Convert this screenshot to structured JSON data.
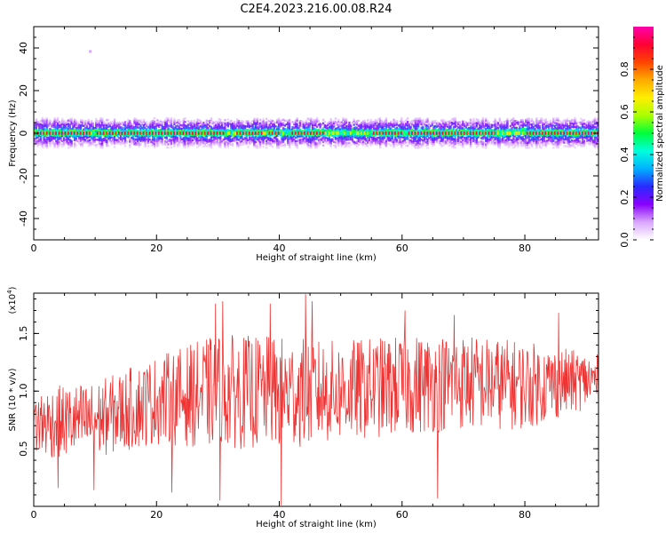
{
  "title": "C2E4.2023.216.00.08.R24",
  "chart_data": [
    {
      "type": "heatmap",
      "xlabel": "Height of straight line (km)",
      "ylabel": "Frequency (Hz)",
      "xlim": [
        0,
        92
      ],
      "ylim": [
        -50,
        50
      ],
      "xticks": [
        0,
        20,
        40,
        60,
        80
      ],
      "yticks": [
        -40,
        -20,
        0,
        20,
        40
      ],
      "band": {
        "center_hz": 0,
        "core_halfwidth_hz": 1.5,
        "envelope_halfwidth_hz": 6,
        "peak_amplitude_ranges_km": [
          [
            0,
            9
          ],
          [
            10,
            31
          ],
          [
            33,
            37
          ],
          [
            38,
            40
          ],
          [
            42,
            47
          ],
          [
            55,
            60
          ],
          [
            61,
            75
          ],
          [
            80,
            92
          ]
        ],
        "elevated_low_freq_km": [
          77,
          80
        ],
        "isolated_point": {
          "x": 9,
          "y": 39
        }
      },
      "colorbar": {
        "label": "Normalized spectral amplitude",
        "range": [
          0,
          1
        ],
        "ticks": [
          "0.0",
          "0.2",
          "0.4",
          "0.6",
          "0.8"
        ],
        "colors": [
          "#ffffff",
          "#d9a6ff",
          "#8800ff",
          "#2a2aff",
          "#00b0ff",
          "#00ffdd",
          "#00ff3c",
          "#aaff00",
          "#ffee00",
          "#ffaa00",
          "#ff4400",
          "#ff0033",
          "#ff00aa"
        ]
      }
    },
    {
      "type": "line",
      "xlabel": "Height of straight line (km)",
      "ylabel": "SNR (10 * v/v)",
      "multiplier": "(x10",
      "multiplier_exp": "4",
      "multiplier_close": ")",
      "xlim": [
        0,
        92
      ],
      "ylim": [
        0,
        1.85
      ],
      "xticks": [
        0,
        20,
        40,
        60,
        80
      ],
      "yticks": [
        "0.5",
        "1.0",
        "1.5"
      ],
      "color": "#ee3333",
      "trend": {
        "x": [
          0,
          10,
          20,
          30,
          40,
          50,
          60,
          70,
          80,
          92
        ],
        "mean": [
          0.72,
          0.75,
          0.92,
          1.0,
          0.98,
          1.0,
          1.05,
          1.08,
          1.05,
          1.1
        ],
        "spread": [
          0.28,
          0.3,
          0.35,
          0.45,
          0.45,
          0.4,
          0.4,
          0.38,
          0.35,
          0.2
        ]
      },
      "peaks": [
        {
          "x": 44.3,
          "y": 1.84
        },
        {
          "x": 45.4,
          "y": 1.78
        },
        {
          "x": 30.8,
          "y": 1.78
        },
        {
          "x": 29.6,
          "y": 1.76
        },
        {
          "x": 38.5,
          "y": 1.76
        },
        {
          "x": 60.5,
          "y": 1.7
        },
        {
          "x": 68.5,
          "y": 1.66
        },
        {
          "x": 85.5,
          "y": 1.68
        }
      ],
      "troughs": [
        {
          "x": 40.3,
          "y": 0.01
        },
        {
          "x": 30.3,
          "y": 0.05
        },
        {
          "x": 65.8,
          "y": 0.07
        },
        {
          "x": 9.8,
          "y": 0.14
        },
        {
          "x": 4.0,
          "y": 0.16
        },
        {
          "x": 22.5,
          "y": 0.12
        }
      ]
    }
  ]
}
